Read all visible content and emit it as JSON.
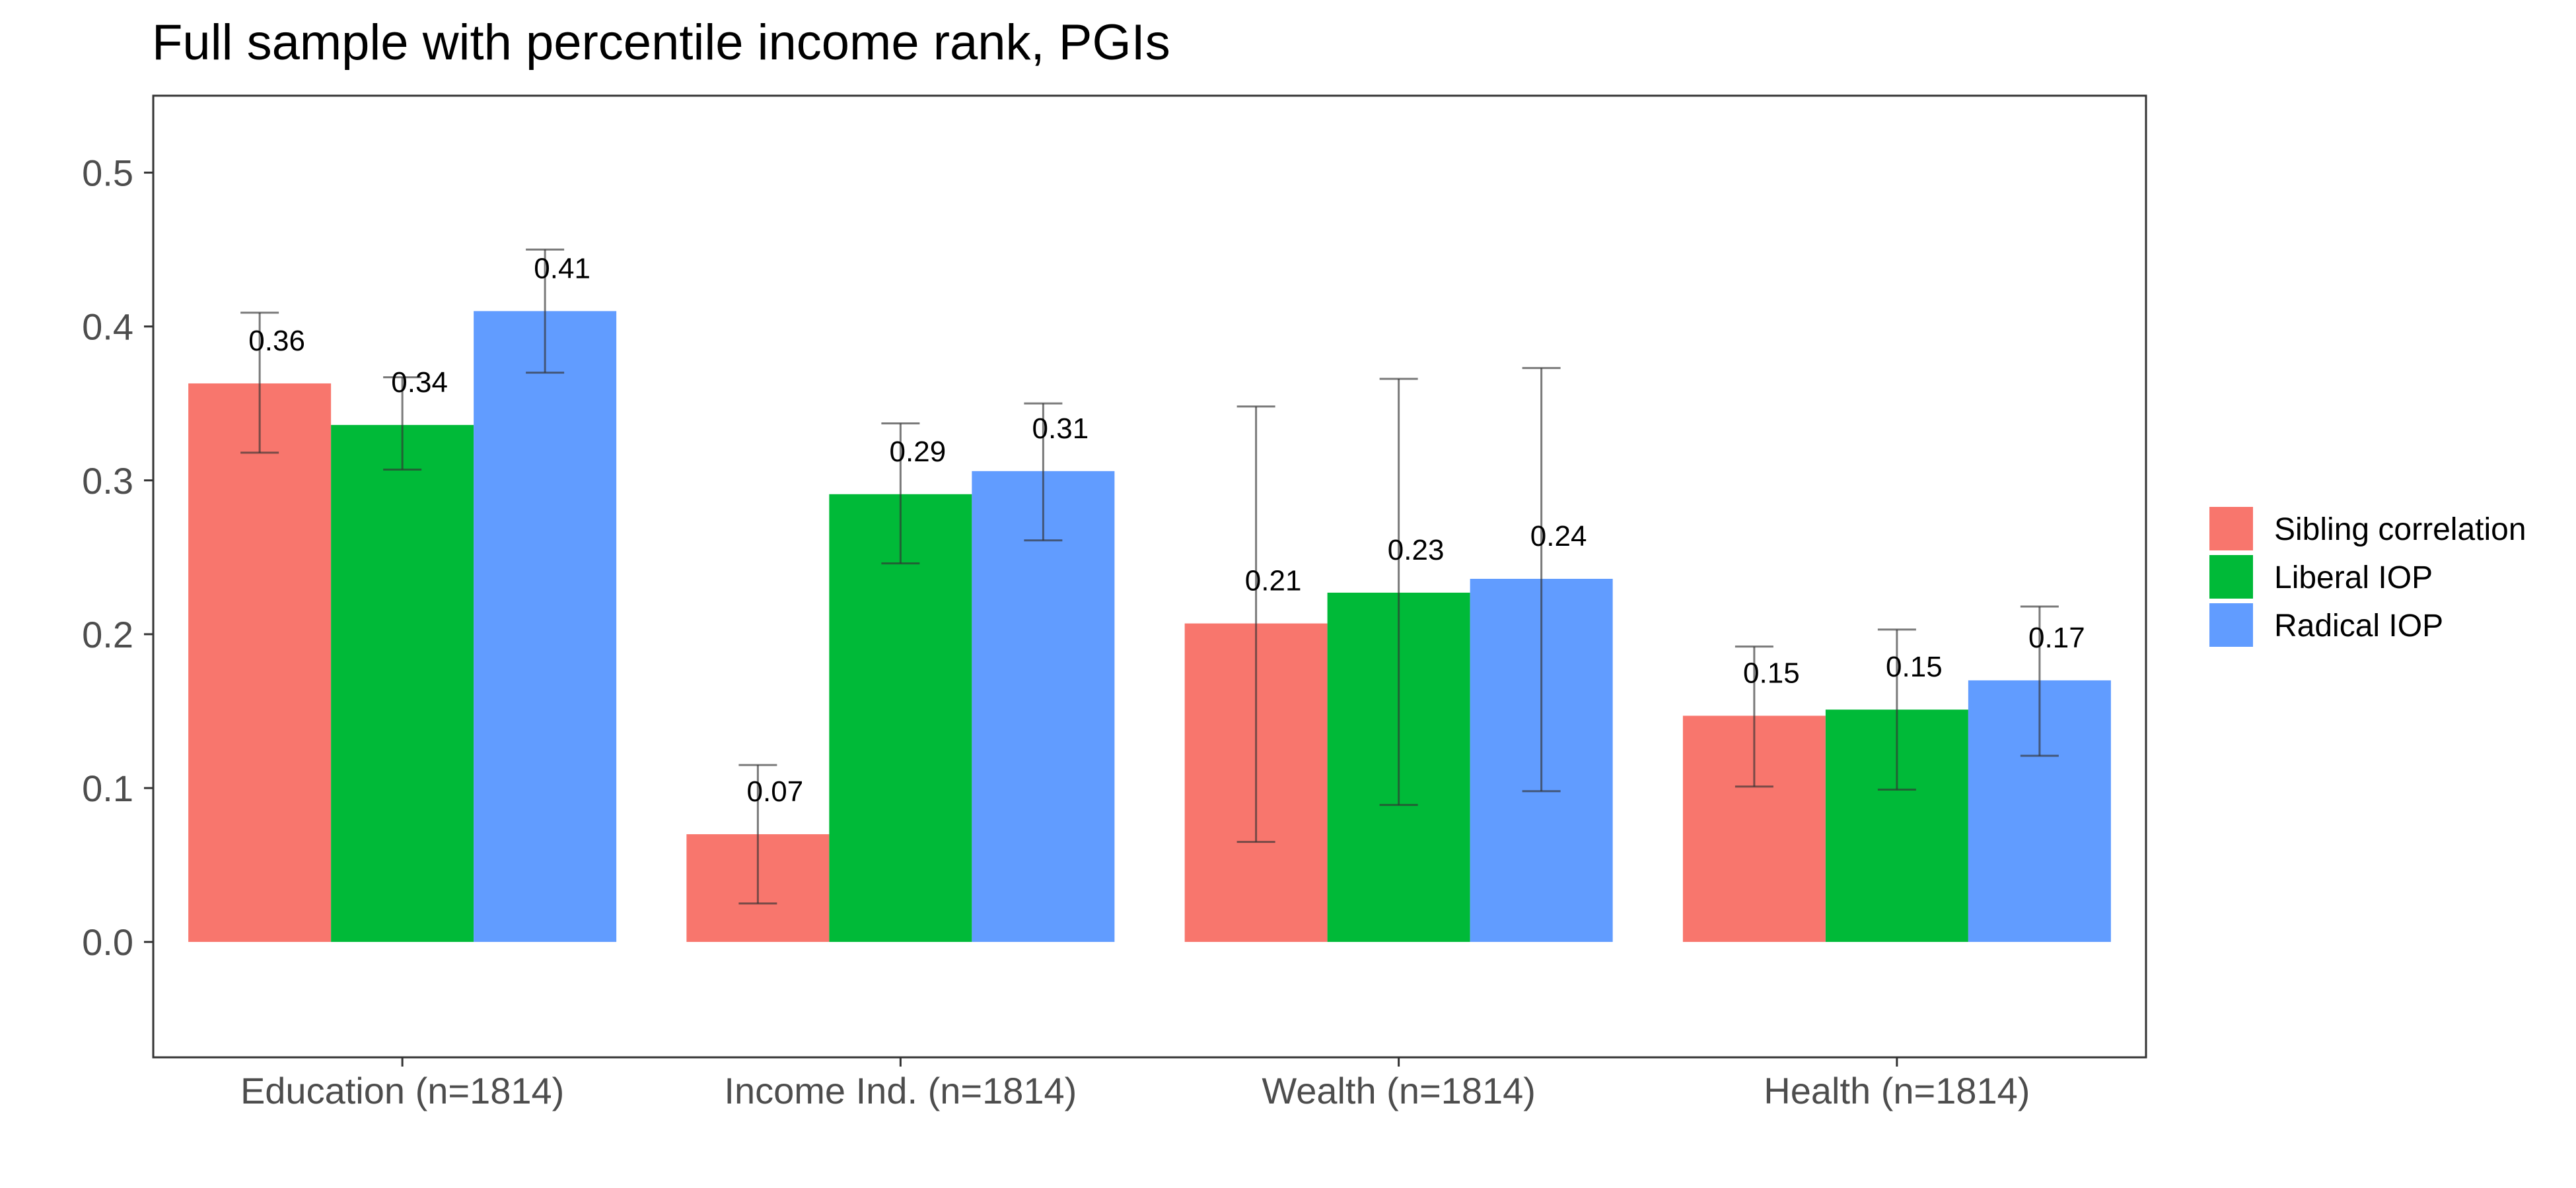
{
  "chart_data": {
    "type": "bar",
    "title": "Full sample with percentile income rank, PGIs",
    "xlabel": "",
    "ylabel": "",
    "ylim": [
      -0.075,
      0.55
    ],
    "yticks": [
      0.0,
      0.1,
      0.2,
      0.3,
      0.4,
      0.5
    ],
    "ytick_labels": [
      "0.0",
      "0.1",
      "0.2",
      "0.3",
      "0.4",
      "0.5"
    ],
    "grid": false,
    "legend_position": "right",
    "categories": [
      "Education (n=1814)",
      "Income Ind. (n=1814)",
      "Wealth (n=1814)",
      "Health (n=1814)"
    ],
    "series": [
      {
        "name": "Sibling correlation",
        "color": "#F8766D",
        "values": [
          0.363,
          0.07,
          0.207,
          0.147
        ],
        "ci_low": [
          0.318,
          0.025,
          0.065,
          0.101
        ],
        "ci_high": [
          0.409,
          0.115,
          0.348,
          0.192
        ],
        "labels": [
          "0.36",
          "0.07",
          "0.21",
          "0.15"
        ]
      },
      {
        "name": "Liberal IOP",
        "color": "#00BA38",
        "values": [
          0.336,
          0.291,
          0.227,
          0.151
        ],
        "ci_low": [
          0.307,
          0.246,
          0.089,
          0.099
        ],
        "ci_high": [
          0.367,
          0.337,
          0.366,
          0.203
        ],
        "labels": [
          "0.34",
          "0.29",
          "0.23",
          "0.15"
        ]
      },
      {
        "name": "Radical IOP",
        "color": "#619CFF",
        "values": [
          0.41,
          0.306,
          0.236,
          0.17
        ],
        "ci_low": [
          0.37,
          0.261,
          0.098,
          0.121
        ],
        "ci_high": [
          0.45,
          0.35,
          0.373,
          0.218
        ],
        "labels": [
          "0.41",
          "0.31",
          "0.24",
          "0.17"
        ]
      }
    ]
  }
}
